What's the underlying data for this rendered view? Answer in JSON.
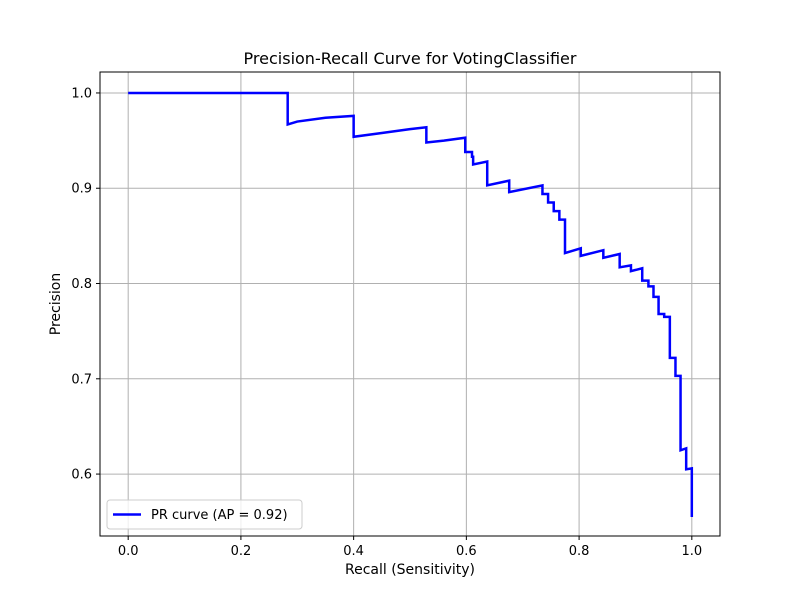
{
  "chart_data": {
    "type": "line",
    "title": "Precision-Recall Curve for VotingClassifier",
    "xlabel": "Recall (Sensitivity)",
    "ylabel": "Precision",
    "xlim": [
      -0.05,
      1.05
    ],
    "ylim": [
      0.535,
      1.022
    ],
    "xticks": [
      "0.0",
      "0.2",
      "0.4",
      "0.6",
      "0.8",
      "1.0"
    ],
    "yticks": [
      "0.6",
      "0.7",
      "0.8",
      "0.9",
      "1.0"
    ],
    "grid": true,
    "legend_position": "lower-left",
    "series": [
      {
        "name": "PR curve (AP = 0.92)",
        "color": "#0000ff",
        "x": [
          0.0,
          0.283,
          0.283,
          0.3,
          0.35,
          0.4,
          0.4,
          0.45,
          0.5,
          0.529,
          0.529,
          0.56,
          0.598,
          0.598,
          0.61,
          0.61,
          0.612,
          0.612,
          0.637,
          0.637,
          0.676,
          0.676,
          0.735,
          0.735,
          0.745,
          0.745,
          0.755,
          0.755,
          0.765,
          0.765,
          0.775,
          0.775,
          0.803,
          0.803,
          0.843,
          0.843,
          0.872,
          0.872,
          0.892,
          0.892,
          0.912,
          0.912,
          0.923,
          0.923,
          0.932,
          0.932,
          0.941,
          0.941,
          0.951,
          0.951,
          0.961,
          0.961,
          0.971,
          0.971,
          0.98,
          0.98,
          0.99,
          0.99,
          1.0,
          1.0
        ],
        "y": [
          1.0,
          1.0,
          0.967,
          0.97,
          0.974,
          0.976,
          0.954,
          0.958,
          0.962,
          0.964,
          0.948,
          0.95,
          0.953,
          0.938,
          0.938,
          0.933,
          0.933,
          0.925,
          0.928,
          0.903,
          0.908,
          0.896,
          0.903,
          0.894,
          0.894,
          0.885,
          0.885,
          0.876,
          0.876,
          0.867,
          0.867,
          0.832,
          0.837,
          0.829,
          0.835,
          0.827,
          0.831,
          0.817,
          0.819,
          0.813,
          0.816,
          0.803,
          0.803,
          0.797,
          0.797,
          0.786,
          0.786,
          0.768,
          0.768,
          0.765,
          0.765,
          0.722,
          0.722,
          0.703,
          0.703,
          0.625,
          0.627,
          0.605,
          0.606,
          0.555
        ]
      }
    ]
  }
}
